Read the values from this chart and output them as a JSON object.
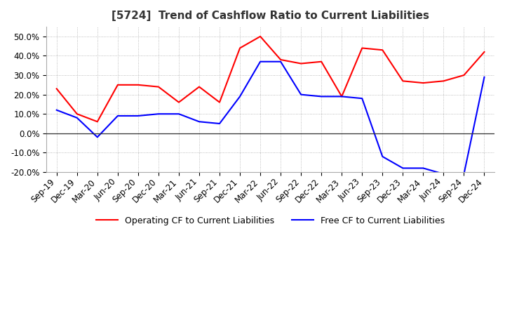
{
  "title": "[5724]  Trend of Cashflow Ratio to Current Liabilities",
  "x_labels": [
    "Sep-19",
    "Dec-19",
    "Mar-20",
    "Jun-20",
    "Sep-20",
    "Dec-20",
    "Mar-21",
    "Jun-21",
    "Sep-21",
    "Dec-21",
    "Mar-22",
    "Jun-22",
    "Sep-22",
    "Dec-22",
    "Mar-23",
    "Jun-23",
    "Sep-23",
    "Dec-23",
    "Mar-24",
    "Jun-24",
    "Sep-24",
    "Dec-24"
  ],
  "operating_cf": [
    23.0,
    10.0,
    6.0,
    25.0,
    25.0,
    24.0,
    16.0,
    24.0,
    16.0,
    44.0,
    50.0,
    38.0,
    36.0,
    37.0,
    19.0,
    44.0,
    43.0,
    27.0,
    26.0,
    27.0,
    30.0,
    42.0
  ],
  "free_cf": [
    12.0,
    8.0,
    -2.0,
    9.0,
    9.0,
    10.0,
    10.0,
    6.0,
    5.0,
    19.0,
    37.0,
    37.0,
    20.0,
    19.0,
    19.0,
    18.0,
    -12.0,
    -18.0,
    -18.0,
    -21.0,
    -21.0,
    29.0
  ],
  "operating_color": "#ff0000",
  "free_color": "#0000ff",
  "ylim": [
    -20.0,
    55.0
  ],
  "yticks": [
    -20.0,
    -10.0,
    0.0,
    10.0,
    20.0,
    30.0,
    40.0,
    50.0
  ],
  "grid_color": "#aaaaaa",
  "background_color": "#ffffff",
  "legend_op": "Operating CF to Current Liabilities",
  "legend_free": "Free CF to Current Liabilities",
  "title_fontsize": 11,
  "tick_fontsize": 8.5,
  "legend_fontsize": 9
}
